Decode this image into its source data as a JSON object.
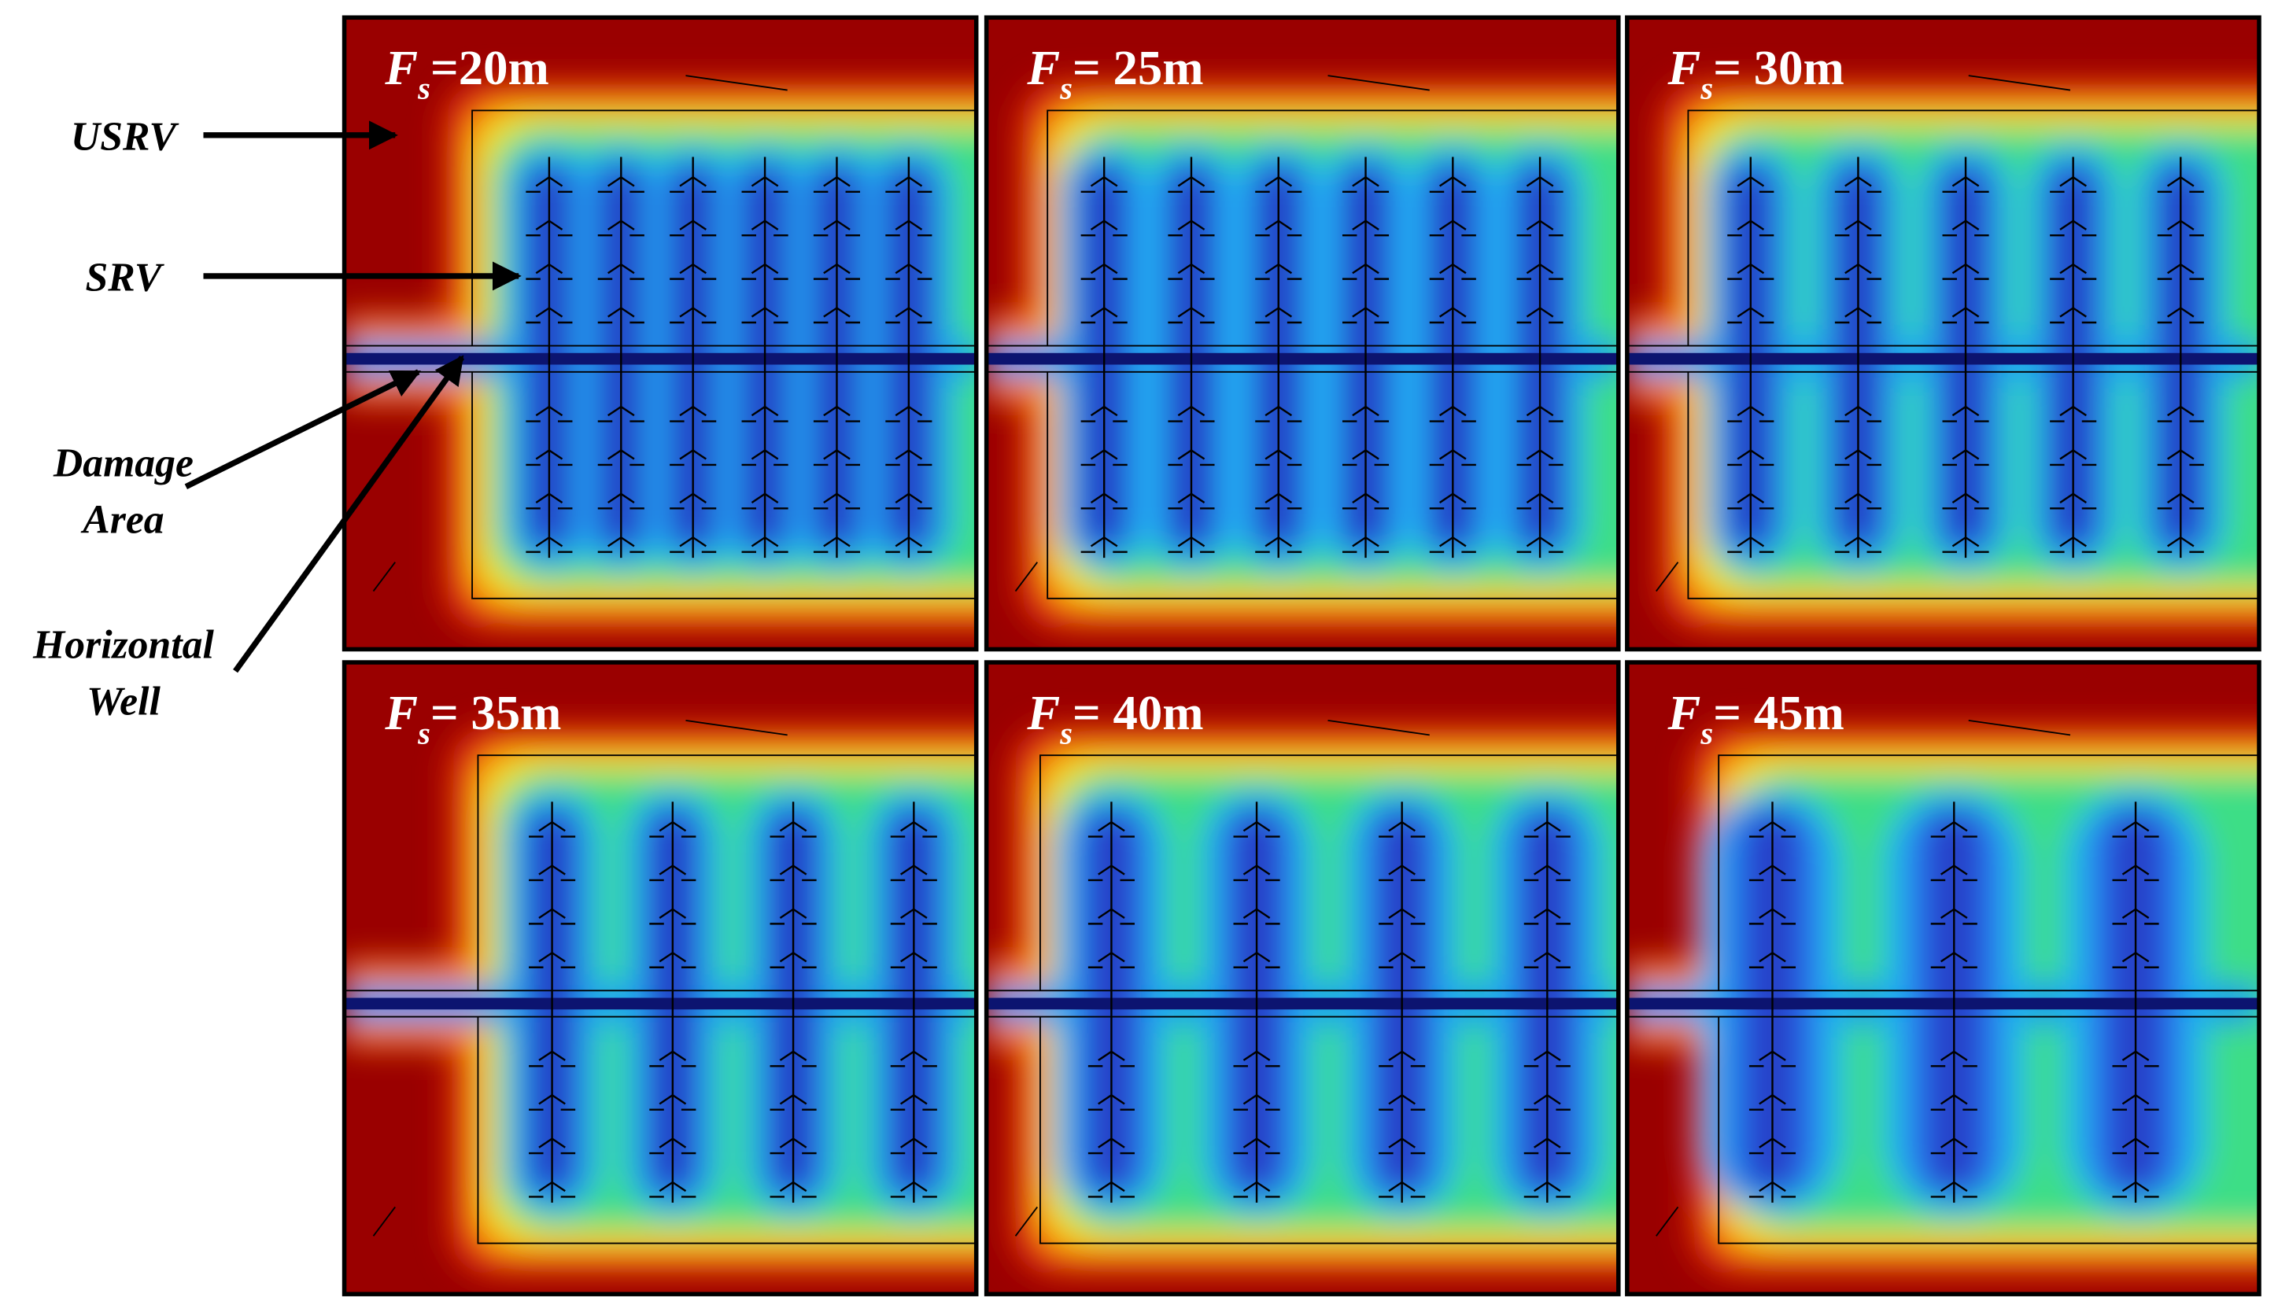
{
  "annotations": [
    {
      "lines": [
        "USRV"
      ]
    },
    {
      "lines": [
        "SRV"
      ]
    },
    {
      "lines": [
        "Damage",
        "Area"
      ]
    },
    {
      "lines": [
        "Horizontal",
        "Well"
      ]
    }
  ],
  "panels": [
    {
      "symbol": "F",
      "subscript": "s",
      "suffix": "=20m"
    },
    {
      "symbol": "F",
      "subscript": "s",
      "suffix": "= 25m"
    },
    {
      "symbol": "F",
      "subscript": "s",
      "suffix": "= 30m"
    },
    {
      "symbol": "F",
      "subscript": "s",
      "suffix": "= 35m"
    },
    {
      "symbol": "F",
      "subscript": "s",
      "suffix": "= 40m"
    },
    {
      "symbol": "F",
      "subscript": "s",
      "suffix": "= 45m"
    }
  ]
}
